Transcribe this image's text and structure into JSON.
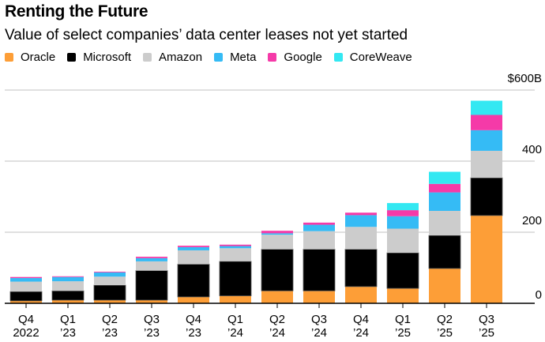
{
  "chart_data": {
    "type": "bar",
    "stacked": true,
    "title": "Renting the Future",
    "subtitle": "Value of select companies’ data center leases not yet started",
    "categories": [
      [
        "Q4",
        "2022"
      ],
      [
        "Q1",
        "’23"
      ],
      [
        "Q2",
        "’23"
      ],
      [
        "Q3",
        "’23"
      ],
      [
        "Q4",
        "’23"
      ],
      [
        "Q1",
        "’24"
      ],
      [
        "Q2",
        "’24"
      ],
      [
        "Q3",
        "’24"
      ],
      [
        "Q4",
        "’24"
      ],
      [
        "Q1",
        "’25"
      ],
      [
        "Q2",
        "’25"
      ],
      [
        "Q3",
        "’25"
      ]
    ],
    "series": [
      {
        "name": "Oracle",
        "color": "#fd9e37",
        "values": [
          7,
          9,
          9,
          9,
          18,
          21,
          35,
          35,
          47,
          42,
          98,
          247
        ]
      },
      {
        "name": "Microsoft",
        "color": "#000000",
        "values": [
          26,
          26,
          42,
          83,
          92,
          97,
          117,
          117,
          105,
          100,
          93,
          106
        ]
      },
      {
        "name": "Amazon",
        "color": "#cccccc",
        "values": [
          28,
          27,
          24,
          26,
          39,
          37,
          41,
          51,
          63,
          68,
          69,
          76
        ]
      },
      {
        "name": "Meta",
        "color": "#35bbf5",
        "values": [
          10,
          12,
          12,
          9,
          9,
          6,
          4,
          18,
          33,
          35,
          52,
          58
        ]
      },
      {
        "name": "Google",
        "color": "#f53aa8",
        "values": [
          3,
          2,
          2,
          4,
          4,
          4,
          7,
          6,
          7,
          17,
          24,
          43
        ]
      },
      {
        "name": "CoreWeave",
        "color": "#33e8f2",
        "values": [
          0,
          0,
          0,
          0,
          0,
          0,
          0,
          0,
          0,
          20,
          34,
          40
        ]
      }
    ],
    "ylim": [
      0,
      600
    ],
    "yticks": [
      0,
      200,
      400,
      600
    ],
    "ytick_labels": [
      "0",
      "200",
      "400",
      "$600B"
    ],
    "grid": true,
    "legend": "top-left",
    "xlabel": "",
    "ylabel": ""
  }
}
